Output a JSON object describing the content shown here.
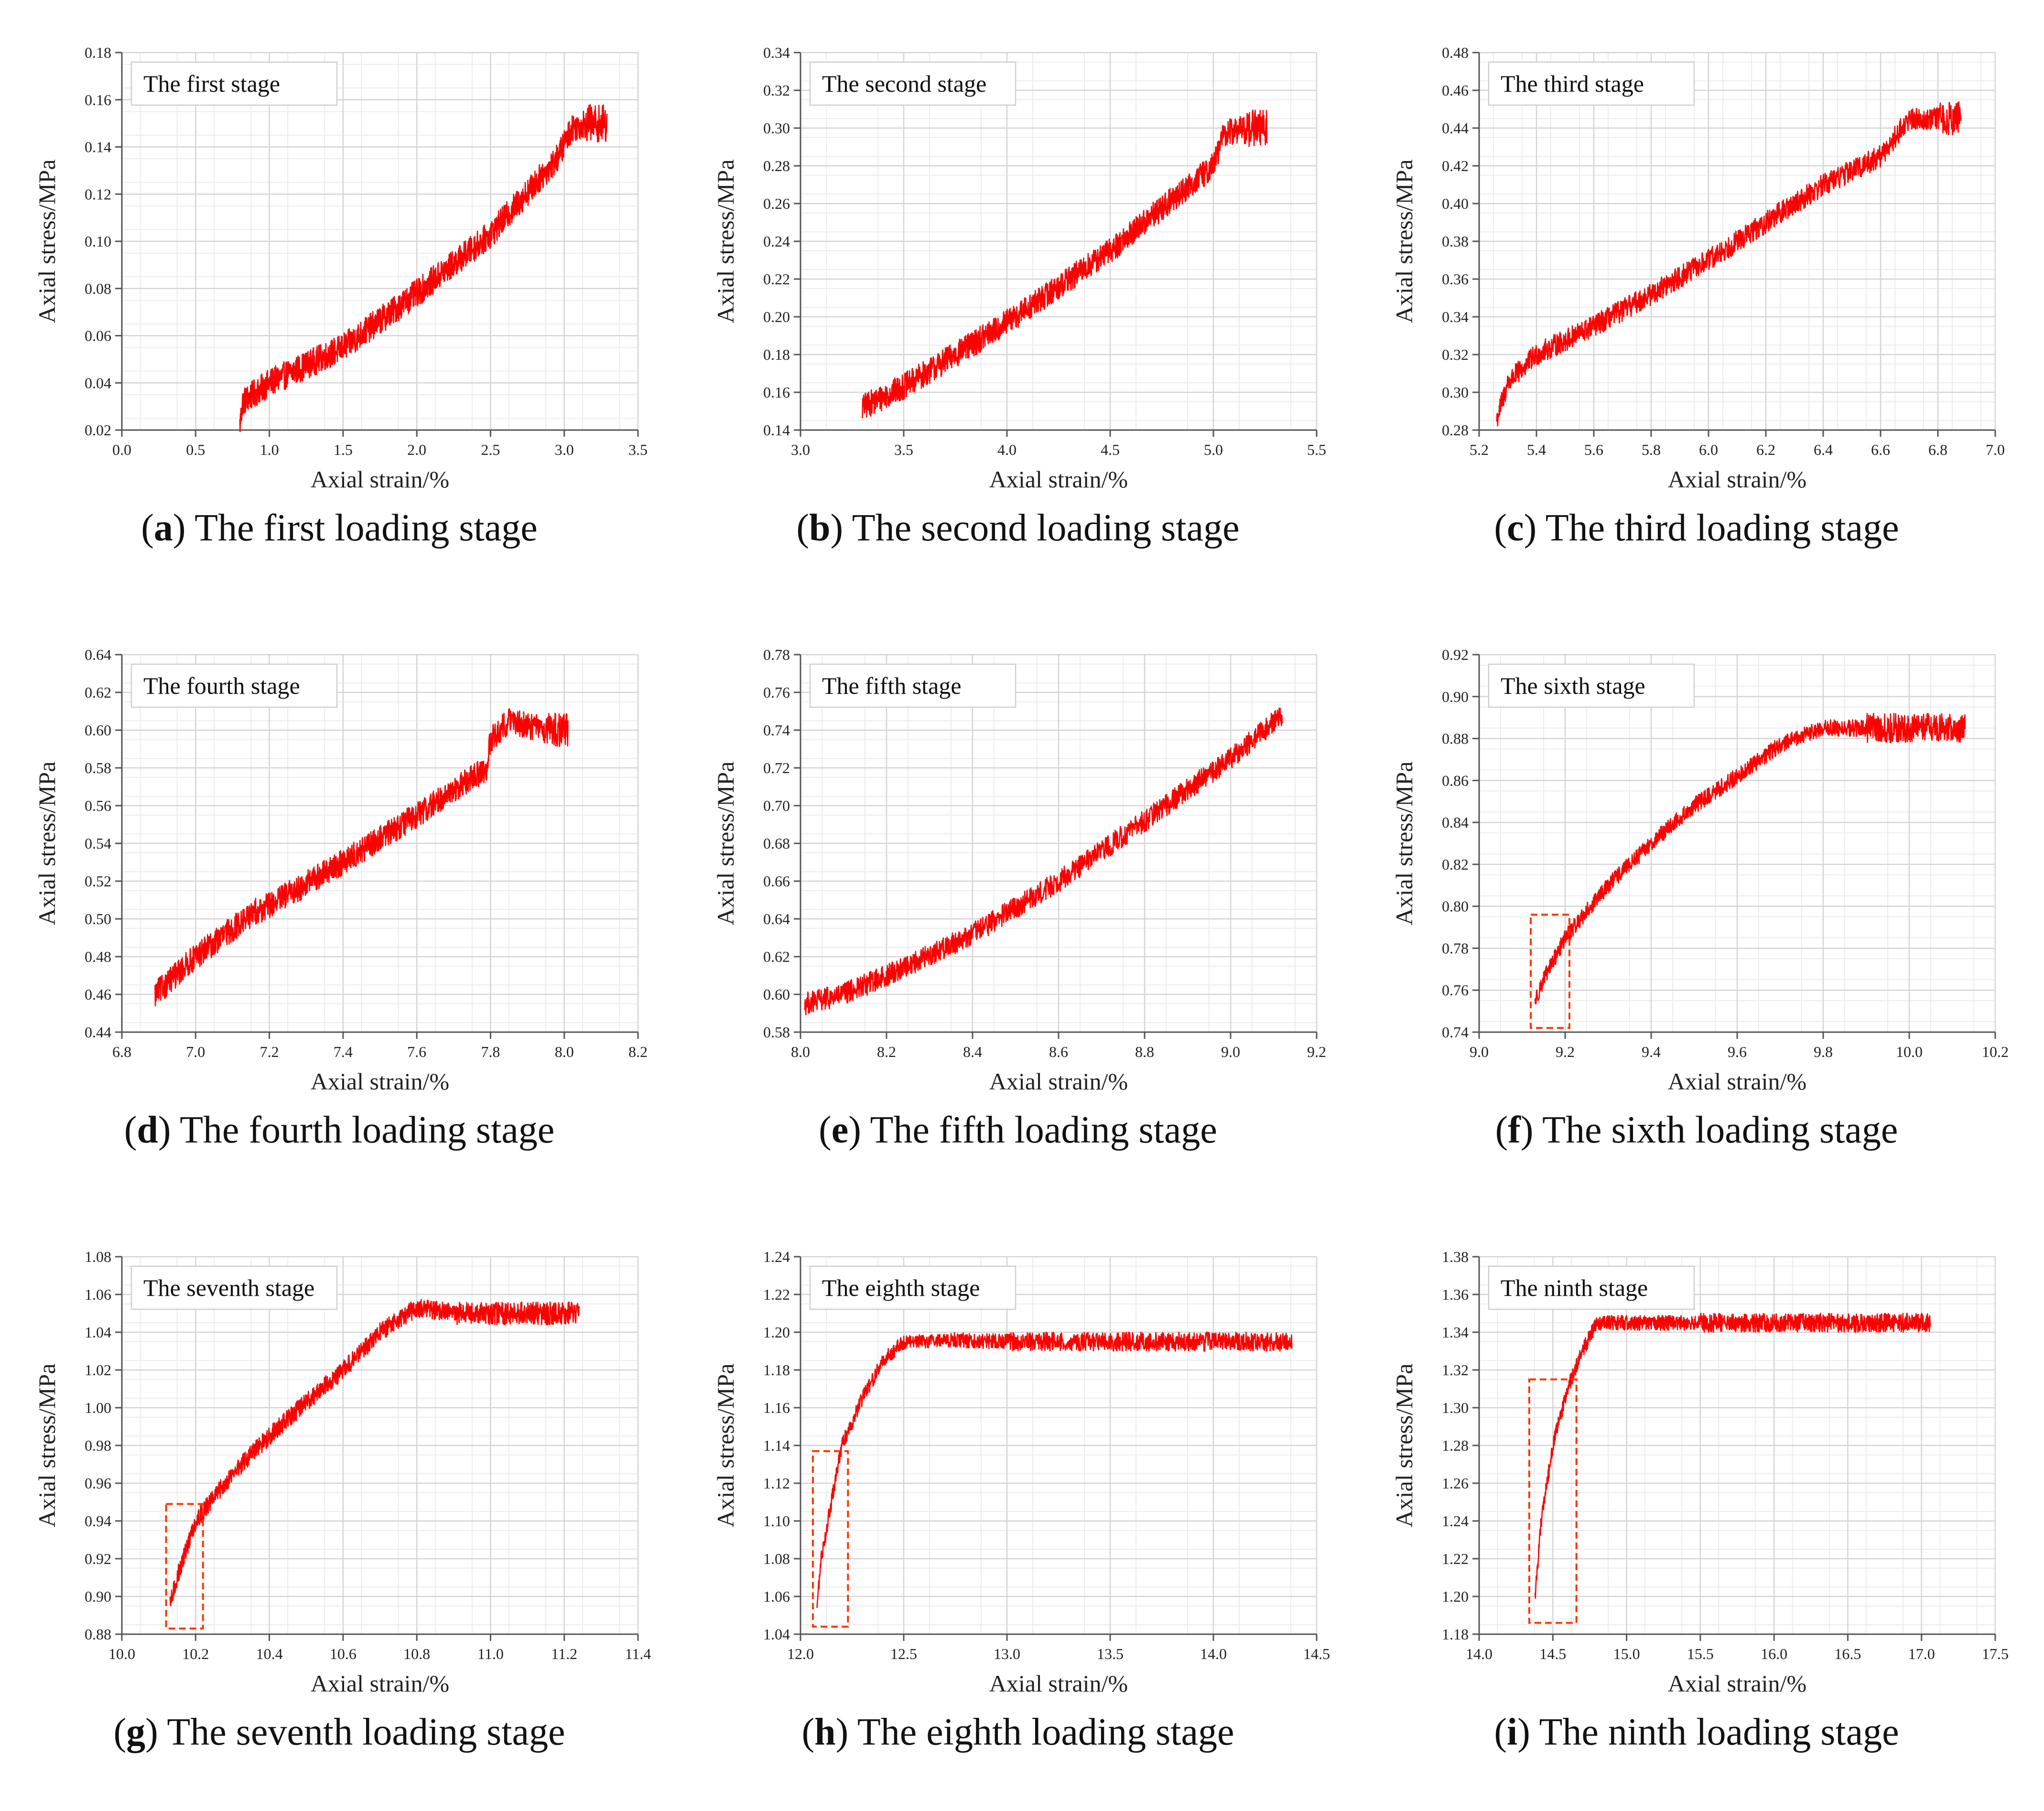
{
  "colors": {
    "curve": "#ff0000",
    "grid": "#d4d4d4",
    "axis": "#555555",
    "highlight_box": "#ff3300"
  },
  "chart_data": [
    {
      "type": "line",
      "panel_id": "a",
      "title": "The first stage",
      "caption_letter": "a",
      "caption_text": "The first loading stage",
      "xlabel": "Axial strain/%",
      "ylabel": "Axial stress/MPa",
      "xlim": [
        0.0,
        3.5
      ],
      "ylim": [
        0.02,
        0.18
      ],
      "xticks": [
        "0.0",
        "0.5",
        "1.0",
        "1.5",
        "2.0",
        "2.5",
        "3.0",
        "3.5"
      ],
      "yticks": [
        "0.02",
        "0.04",
        "0.06",
        "0.08",
        "0.10",
        "0.12",
        "0.14",
        "0.16",
        "0.18"
      ],
      "noise": 0.006,
      "x_end": 3.29,
      "plateau_noise": 0.008,
      "series": [
        {
          "name": "Axial stress",
          "x": [
            0.8,
            0.82,
            1.0,
            1.5,
            2.0,
            2.5,
            2.95,
            3.05,
            3.15
          ],
          "y": [
            0.022,
            0.032,
            0.04,
            0.055,
            0.078,
            0.103,
            0.135,
            0.148,
            0.15
          ]
        }
      ]
    },
    {
      "type": "line",
      "panel_id": "b",
      "title": "The second stage",
      "caption_letter": "b",
      "caption_text": "The second loading stage",
      "xlabel": "Axial strain/%",
      "ylabel": "Axial stress/MPa",
      "xlim": [
        3.0,
        5.5
      ],
      "ylim": [
        0.14,
        0.34
      ],
      "xticks": [
        "3.0",
        "3.5",
        "4.0",
        "4.5",
        "5.0",
        "5.5"
      ],
      "yticks": [
        "0.14",
        "0.16",
        "0.18",
        "0.20",
        "0.22",
        "0.24",
        "0.26",
        "0.28",
        "0.30",
        "0.32",
        "0.34"
      ],
      "noise": 0.007,
      "x_end": 5.26,
      "plateau_noise": 0.01,
      "series": [
        {
          "name": "Axial stress",
          "x": [
            3.3,
            3.5,
            4.0,
            4.5,
            5.0,
            5.05,
            5.15
          ],
          "y": [
            0.152,
            0.163,
            0.197,
            0.235,
            0.28,
            0.297,
            0.3
          ]
        }
      ]
    },
    {
      "type": "line",
      "panel_id": "c",
      "title": "The third stage",
      "caption_letter": "c",
      "caption_text": "The third loading stage",
      "xlabel": "Axial strain/%",
      "ylabel": "Axial stress/MPa",
      "xlim": [
        5.2,
        7.0
      ],
      "ylim": [
        0.28,
        0.48
      ],
      "xticks": [
        "5.2",
        "5.4",
        "5.6",
        "5.8",
        "6.0",
        "6.2",
        "6.4",
        "6.6",
        "6.8",
        "7.0"
      ],
      "yticks": [
        "0.28",
        "0.30",
        "0.32",
        "0.34",
        "0.36",
        "0.38",
        "0.40",
        "0.42",
        "0.44",
        "0.46",
        "0.48"
      ],
      "noise": 0.006,
      "x_end": 6.88,
      "plateau_noise": 0.009,
      "series": [
        {
          "name": "Axial stress",
          "x": [
            5.26,
            5.3,
            5.4,
            5.6,
            5.8,
            6.0,
            6.2,
            6.4,
            6.6,
            6.7,
            6.8
          ],
          "y": [
            0.285,
            0.305,
            0.32,
            0.335,
            0.352,
            0.37,
            0.39,
            0.41,
            0.425,
            0.445,
            0.445
          ]
        }
      ]
    },
    {
      "type": "line",
      "panel_id": "d",
      "title": "The fourth stage",
      "caption_letter": "d",
      "caption_text": "The fourth loading stage",
      "xlabel": "Axial strain/%",
      "ylabel": "Axial stress/MPa",
      "xlim": [
        6.8,
        8.2
      ],
      "ylim": [
        0.44,
        0.64
      ],
      "xticks": [
        "6.8",
        "7.0",
        "7.2",
        "7.4",
        "7.6",
        "7.8",
        "8.0",
        "8.2"
      ],
      "yticks": [
        "0.44",
        "0.46",
        "0.48",
        "0.50",
        "0.52",
        "0.54",
        "0.56",
        "0.58",
        "0.60",
        "0.62",
        "0.64"
      ],
      "noise": 0.007,
      "x_end": 8.01,
      "plateau_noise": 0.009,
      "series": [
        {
          "name": "Axial stress",
          "x": [
            6.89,
            7.0,
            7.17,
            7.18,
            7.4,
            7.6,
            7.79,
            7.8,
            7.85,
            7.95
          ],
          "y": [
            0.46,
            0.48,
            0.505,
            0.505,
            0.53,
            0.555,
            0.58,
            0.595,
            0.605,
            0.6
          ]
        }
      ]
    },
    {
      "type": "line",
      "panel_id": "e",
      "title": "The fifth stage",
      "caption_letter": "e",
      "caption_text": "The fifth loading stage",
      "xlabel": "Axial strain/%",
      "ylabel": "Axial stress/MPa",
      "xlim": [
        8.0,
        9.2
      ],
      "ylim": [
        0.58,
        0.78
      ],
      "xticks": [
        "8.0",
        "8.2",
        "8.4",
        "8.6",
        "8.8",
        "9.0",
        "9.2"
      ],
      "yticks": [
        "0.58",
        "0.60",
        "0.62",
        "0.64",
        "0.66",
        "0.68",
        "0.70",
        "0.72",
        "0.74",
        "0.76",
        "0.78"
      ],
      "noise": 0.006,
      "x_end": 9.12,
      "plateau_noise": 0.0,
      "series": [
        {
          "name": "Axial stress",
          "x": [
            8.01,
            8.1,
            8.2,
            8.4,
            8.6,
            8.8,
            9.0,
            9.12
          ],
          "y": [
            0.595,
            0.6,
            0.61,
            0.632,
            0.66,
            0.692,
            0.725,
            0.748
          ]
        }
      ]
    },
    {
      "type": "line",
      "panel_id": "f",
      "title": "The sixth stage",
      "caption_letter": "f",
      "caption_text": "The sixth loading stage",
      "xlabel": "Axial strain/%",
      "ylabel": "Axial stress/MPa",
      "xlim": [
        9.0,
        10.2
      ],
      "ylim": [
        0.74,
        0.92
      ],
      "xticks": [
        "9.0",
        "9.2",
        "9.4",
        "9.6",
        "9.8",
        "10.0",
        "10.2"
      ],
      "yticks": [
        "0.74",
        "0.76",
        "0.78",
        "0.80",
        "0.82",
        "0.84",
        "0.86",
        "0.88",
        "0.90",
        "0.92"
      ],
      "noise": 0.004,
      "x_end": 10.13,
      "plateau_noise": 0.007,
      "box": {
        "x0": 9.12,
        "x1": 9.21,
        "y0": 0.742,
        "y1": 0.796
      },
      "series": [
        {
          "name": "Axial stress",
          "x": [
            9.13,
            9.15,
            9.2,
            9.3,
            9.4,
            9.5,
            9.6,
            9.7,
            9.8,
            9.9
          ],
          "y": [
            0.755,
            0.765,
            0.785,
            0.81,
            0.83,
            0.848,
            0.862,
            0.877,
            0.885,
            0.885
          ]
        }
      ]
    },
    {
      "type": "line",
      "panel_id": "g",
      "title": "The seventh stage",
      "caption_letter": "g",
      "caption_text": "The seventh loading stage",
      "xlabel": "Axial strain/%",
      "ylabel": "Axial stress/MPa",
      "xlim": [
        10.0,
        11.4
      ],
      "ylim": [
        0.88,
        1.08
      ],
      "xticks": [
        "10.0",
        "10.2",
        "10.4",
        "10.6",
        "10.8",
        "11.0",
        "11.2",
        "11.4"
      ],
      "yticks": [
        "0.88",
        "0.90",
        "0.92",
        "0.94",
        "0.96",
        "0.98",
        "1.00",
        "1.02",
        "1.04",
        "1.06",
        "1.08"
      ],
      "noise": 0.005,
      "x_end": 11.24,
      "plateau_noise": 0.006,
      "box": {
        "x0": 10.12,
        "x1": 10.22,
        "y0": 0.883,
        "y1": 0.949
      },
      "series": [
        {
          "name": "Axial stress",
          "x": [
            10.13,
            10.15,
            10.2,
            10.3,
            10.4,
            10.5,
            10.6,
            10.7,
            10.8,
            10.9
          ],
          "y": [
            0.895,
            0.91,
            0.94,
            0.965,
            0.985,
            1.003,
            1.02,
            1.04,
            1.053,
            1.05
          ]
        }
      ]
    },
    {
      "type": "line",
      "panel_id": "h",
      "title": "The eighth stage",
      "caption_letter": "h",
      "caption_text": "The eighth loading stage",
      "xlabel": "Axial strain/%",
      "ylabel": "Axial stress/MPa",
      "xlim": [
        12.0,
        14.5
      ],
      "ylim": [
        1.04,
        1.24
      ],
      "xticks": [
        "12.0",
        "12.5",
        "13.0",
        "13.5",
        "14.0",
        "14.5"
      ],
      "yticks": [
        "1.04",
        "1.06",
        "1.08",
        "1.10",
        "1.12",
        "1.14",
        "1.16",
        "1.18",
        "1.20",
        "1.22",
        "1.24"
      ],
      "noise": 0.004,
      "x_end": 14.38,
      "plateau_noise": 0.005,
      "box": {
        "x0": 12.06,
        "x1": 12.23,
        "y0": 1.044,
        "y1": 1.137
      },
      "series": [
        {
          "name": "Axial stress",
          "x": [
            12.08,
            12.1,
            12.15,
            12.2,
            12.3,
            12.4,
            12.5,
            12.7,
            13.0
          ],
          "y": [
            1.055,
            1.08,
            1.11,
            1.14,
            1.165,
            1.185,
            1.195,
            1.196,
            1.195
          ]
        }
      ]
    },
    {
      "type": "line",
      "panel_id": "i",
      "title": "The ninth stage",
      "caption_letter": "i",
      "caption_text": "The ninth loading stage",
      "xlabel": "Axial strain/%",
      "ylabel": "Axial stress/MPa",
      "xlim": [
        14.0,
        17.5
      ],
      "ylim": [
        1.18,
        1.38
      ],
      "xticks": [
        "14.0",
        "14.5",
        "15.0",
        "15.5",
        "16.0",
        "16.5",
        "17.0",
        "17.5"
      ],
      "yticks": [
        "1.18",
        "1.20",
        "1.22",
        "1.24",
        "1.26",
        "1.28",
        "1.30",
        "1.32",
        "1.34",
        "1.36",
        "1.38"
      ],
      "noise": 0.004,
      "x_end": 17.06,
      "plateau_noise": 0.005,
      "box": {
        "x0": 14.34,
        "x1": 14.66,
        "y0": 1.186,
        "y1": 1.315
      },
      "series": [
        {
          "name": "Axial stress",
          "x": [
            14.38,
            14.42,
            14.5,
            14.6,
            14.7,
            14.8,
            15.0,
            15.5
          ],
          "y": [
            1.2,
            1.24,
            1.28,
            1.31,
            1.33,
            1.345,
            1.345,
            1.345
          ]
        }
      ]
    }
  ]
}
